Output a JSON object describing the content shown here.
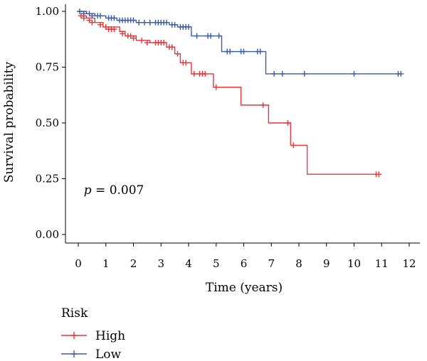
{
  "chart_data": {
    "type": "line",
    "subtype": "kaplan-meier",
    "xlabel": "Time (years)",
    "ylabel": "Survival probability",
    "xlim": [
      0,
      12
    ],
    "ylim": [
      0,
      1
    ],
    "x_ticks": [
      0,
      1,
      2,
      3,
      4,
      5,
      6,
      7,
      8,
      9,
      10,
      11,
      12
    ],
    "y_ticks": [
      0.0,
      0.25,
      0.5,
      0.75,
      1.0
    ],
    "y_tick_labels": [
      "0.00",
      "0.25",
      "0.50",
      "0.75",
      "1.00"
    ],
    "annotation": {
      "italic": "p",
      "text": " = 0.007",
      "x": 0.2,
      "y": 0.2
    },
    "legend": {
      "title": "Risk",
      "placement": "bottom-left"
    },
    "grid": false,
    "series": [
      {
        "name": "High",
        "color": "#e8343a",
        "steps": [
          [
            0,
            0.98
          ],
          [
            0.3,
            0.97
          ],
          [
            0.6,
            0.95
          ],
          [
            0.9,
            0.93
          ],
          [
            1.5,
            0.91
          ],
          [
            1.7,
            0.89
          ],
          [
            2.1,
            0.87
          ],
          [
            2.6,
            0.86
          ],
          [
            3.2,
            0.84
          ],
          [
            3.5,
            0.81
          ],
          [
            3.7,
            0.77
          ],
          [
            4.1,
            0.72
          ],
          [
            4.9,
            0.66
          ],
          [
            5.9,
            0.58
          ],
          [
            6.9,
            0.5
          ],
          [
            7.7,
            0.4
          ],
          [
            8.3,
            0.27
          ],
          [
            10.9,
            0.27
          ]
        ],
        "censored": [
          [
            0.1,
            0.98
          ],
          [
            0.2,
            0.97
          ],
          [
            0.4,
            0.96
          ],
          [
            0.5,
            0.95
          ],
          [
            0.8,
            0.94
          ],
          [
            1.0,
            0.93
          ],
          [
            1.1,
            0.92
          ],
          [
            1.2,
            0.92
          ],
          [
            1.3,
            0.92
          ],
          [
            1.6,
            0.9
          ],
          [
            1.8,
            0.89
          ],
          [
            1.9,
            0.89
          ],
          [
            2.0,
            0.88
          ],
          [
            2.3,
            0.87
          ],
          [
            2.5,
            0.86
          ],
          [
            2.8,
            0.86
          ],
          [
            2.9,
            0.86
          ],
          [
            3.0,
            0.86
          ],
          [
            3.1,
            0.86
          ],
          [
            3.3,
            0.84
          ],
          [
            3.4,
            0.84
          ],
          [
            3.6,
            0.81
          ],
          [
            3.8,
            0.77
          ],
          [
            3.9,
            0.77
          ],
          [
            4.2,
            0.72
          ],
          [
            4.4,
            0.72
          ],
          [
            4.5,
            0.72
          ],
          [
            4.6,
            0.72
          ],
          [
            5.0,
            0.66
          ],
          [
            6.7,
            0.58
          ],
          [
            7.6,
            0.5
          ],
          [
            7.8,
            0.4
          ],
          [
            10.8,
            0.27
          ],
          [
            10.9,
            0.27
          ]
        ]
      },
      {
        "name": "Low",
        "color": "#3b5ba5",
        "steps": [
          [
            0,
            1.0
          ],
          [
            0.3,
            0.99
          ],
          [
            0.6,
            0.98
          ],
          [
            1.0,
            0.97
          ],
          [
            1.4,
            0.96
          ],
          [
            2.1,
            0.95
          ],
          [
            3.3,
            0.94
          ],
          [
            3.6,
            0.93
          ],
          [
            4.1,
            0.89
          ],
          [
            5.2,
            0.82
          ],
          [
            6.8,
            0.72
          ],
          [
            11.7,
            0.72
          ]
        ],
        "censored": [
          [
            0.05,
            1.0
          ],
          [
            0.2,
            0.99
          ],
          [
            0.4,
            0.99
          ],
          [
            0.5,
            0.98
          ],
          [
            0.7,
            0.98
          ],
          [
            0.8,
            0.98
          ],
          [
            1.1,
            0.97
          ],
          [
            1.2,
            0.97
          ],
          [
            1.3,
            0.97
          ],
          [
            1.5,
            0.96
          ],
          [
            1.6,
            0.96
          ],
          [
            1.7,
            0.96
          ],
          [
            1.8,
            0.96
          ],
          [
            1.9,
            0.96
          ],
          [
            2.0,
            0.96
          ],
          [
            2.2,
            0.95
          ],
          [
            2.4,
            0.95
          ],
          [
            2.6,
            0.95
          ],
          [
            2.8,
            0.95
          ],
          [
            2.9,
            0.95
          ],
          [
            3.0,
            0.95
          ],
          [
            3.1,
            0.95
          ],
          [
            3.2,
            0.95
          ],
          [
            3.4,
            0.94
          ],
          [
            3.5,
            0.94
          ],
          [
            3.7,
            0.93
          ],
          [
            3.8,
            0.93
          ],
          [
            3.9,
            0.93
          ],
          [
            4.0,
            0.93
          ],
          [
            4.3,
            0.89
          ],
          [
            4.7,
            0.89
          ],
          [
            4.8,
            0.89
          ],
          [
            5.1,
            0.89
          ],
          [
            5.4,
            0.82
          ],
          [
            5.5,
            0.82
          ],
          [
            5.9,
            0.82
          ],
          [
            6.0,
            0.82
          ],
          [
            6.5,
            0.82
          ],
          [
            6.6,
            0.82
          ],
          [
            7.1,
            0.72
          ],
          [
            7.4,
            0.72
          ],
          [
            8.2,
            0.72
          ],
          [
            10.0,
            0.72
          ],
          [
            11.6,
            0.72
          ],
          [
            11.7,
            0.72
          ]
        ]
      }
    ]
  }
}
